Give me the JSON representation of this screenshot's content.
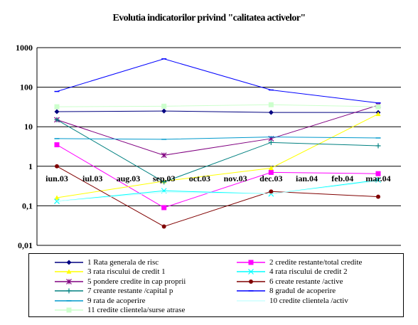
{
  "chart_data": {
    "type": "line",
    "title": "Evolutia indicatorilor privind \"calitatea activelor\"",
    "xlabel": "",
    "ylabel": "",
    "yscale": "log",
    "ylim": [
      0.01,
      1000
    ],
    "y_tick_labels": [
      "0,01",
      "0,1",
      "1",
      "10",
      "100",
      "1000"
    ],
    "grid": "horizontal",
    "legend_position": "bottom",
    "categories": [
      "iun.03",
      "iul.03",
      "aug.03",
      "sep.03",
      "oct.03",
      "nov.03",
      "dec.03",
      "ian.04",
      "feb.04",
      "mar.04"
    ],
    "series": [
      {
        "name": "1 Rata generala de risc",
        "color": "#000080",
        "marker": "diamond",
        "points": [
          {
            "x": "iun.03",
            "y": 24
          },
          {
            "x": "sep.03",
            "y": 25
          },
          {
            "x": "dec.03",
            "y": 23
          },
          {
            "x": "mar.04",
            "y": 23
          }
        ]
      },
      {
        "name": "2 credite restante/total credite",
        "color": "#ff00ff",
        "marker": "square",
        "points": [
          {
            "x": "iun.03",
            "y": 3.5
          },
          {
            "x": "sep.03",
            "y": 0.09
          },
          {
            "x": "dec.03",
            "y": 0.7
          },
          {
            "x": "mar.04",
            "y": 0.65
          }
        ]
      },
      {
        "name": "3 rata riscului de credit 1",
        "color": "#ffff00",
        "marker": "triangle",
        "points": [
          {
            "x": "iun.03",
            "y": 0.16
          },
          {
            "x": "sep.03",
            "y": 0.42
          },
          {
            "x": "dec.03",
            "y": 0.9
          },
          {
            "x": "mar.04",
            "y": 21
          }
        ]
      },
      {
        "name": "4 rata riscului de credit 2",
        "color": "#00ffff",
        "marker": "x",
        "points": [
          {
            "x": "iun.03",
            "y": 0.13
          },
          {
            "x": "sep.03",
            "y": 0.24
          },
          {
            "x": "dec.03",
            "y": 0.2
          },
          {
            "x": "mar.04",
            "y": 0.45
          }
        ]
      },
      {
        "name": "5 pondere credite in cap proprii",
        "color": "#800080",
        "marker": "star",
        "points": [
          {
            "x": "iun.03",
            "y": 15
          },
          {
            "x": "sep.03",
            "y": 1.9
          },
          {
            "x": "dec.03",
            "y": 5
          },
          {
            "x": "mar.04",
            "y": 35
          }
        ]
      },
      {
        "name": "6 create restante /active",
        "color": "#800000",
        "marker": "circle",
        "points": [
          {
            "x": "iun.03",
            "y": 1
          },
          {
            "x": "sep.03",
            "y": 0.03
          },
          {
            "x": "dec.03",
            "y": 0.23
          },
          {
            "x": "mar.04",
            "y": 0.17
          }
        ]
      },
      {
        "name": "7 creante restante /capital p",
        "color": "#008080",
        "marker": "plus",
        "points": [
          {
            "x": "iun.03",
            "y": 15
          },
          {
            "x": "sep.03",
            "y": 0.4
          },
          {
            "x": "dec.03",
            "y": 4
          },
          {
            "x": "mar.04",
            "y": 3.3
          }
        ]
      },
      {
        "name": "8 gradul de acoperire",
        "color": "#0000ff",
        "marker": "dash",
        "points": [
          {
            "x": "iun.03",
            "y": 78
          },
          {
            "x": "sep.03",
            "y": 520
          },
          {
            "x": "dec.03",
            "y": 85
          },
          {
            "x": "mar.04",
            "y": 40
          }
        ]
      },
      {
        "name": "9 rata de acoperire",
        "color": "#0099cc",
        "marker": "dash",
        "points": [
          {
            "x": "iun.03",
            "y": 5
          },
          {
            "x": "sep.03",
            "y": 4.8
          },
          {
            "x": "dec.03",
            "y": 5.5
          },
          {
            "x": "mar.04",
            "y": 5.2
          }
        ]
      },
      {
        "name": "10 credite clientela /activ",
        "color": "#ccffff",
        "marker": "none",
        "points": [
          {
            "x": "iun.03",
            "y": 0.13
          },
          {
            "x": "sep.03",
            "y": 0.22
          },
          {
            "x": "dec.03",
            "y": 0.2
          },
          {
            "x": "mar.04",
            "y": 0.42
          }
        ]
      },
      {
        "name": "11 credite clientela/surse atrase",
        "color": "#ccffcc",
        "marker": "square",
        "points": [
          {
            "x": "iun.03",
            "y": 32
          },
          {
            "x": "sep.03",
            "y": 33
          },
          {
            "x": "dec.03",
            "y": 36
          },
          {
            "x": "mar.04",
            "y": 32
          }
        ]
      }
    ]
  }
}
